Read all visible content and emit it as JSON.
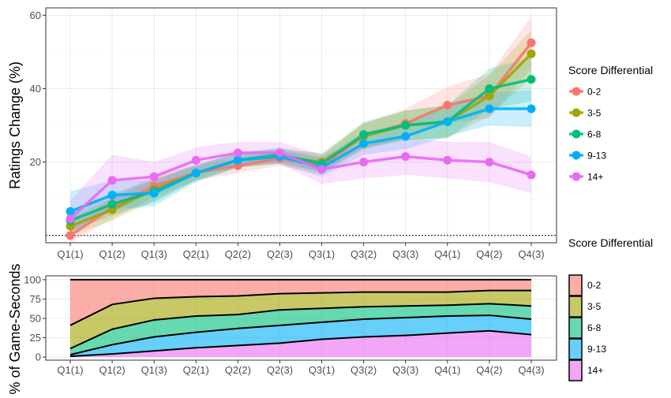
{
  "chart_data": [
    {
      "type": "line",
      "xlabel": "",
      "ylabel": "Ratings Change (%)",
      "categories": [
        "Q1(1)",
        "Q1(2)",
        "Q1(3)",
        "Q2(1)",
        "Q2(2)",
        "Q2(3)",
        "Q3(1)",
        "Q3(2)",
        "Q3(3)",
        "Q4(1)",
        "Q4(2)",
        "Q4(3)"
      ],
      "ylim": [
        -2,
        62
      ],
      "yticks": [
        "20",
        "40",
        "60"
      ],
      "ytick_values": [
        20,
        40,
        60
      ],
      "reference_line": 0,
      "grid": true,
      "legend_title": "Score Differential",
      "legend_position": "right",
      "series": [
        {
          "name": "0-2",
          "color": "#F8766D",
          "values": [
            0.0,
            7.5,
            13.5,
            17.0,
            19.0,
            21.0,
            19.0,
            27.0,
            30.5,
            35.5,
            38.0,
            52.5
          ],
          "band": [
            2.0,
            3.0,
            3.0,
            2.0,
            2.0,
            2.0,
            2.5,
            3.5,
            4.0,
            5.0,
            6.0,
            7.0
          ]
        },
        {
          "name": "3-5",
          "color": "#A3A500",
          "values": [
            2.5,
            7.0,
            12.5,
            17.0,
            20.5,
            21.5,
            20.0,
            27.0,
            30.0,
            31.0,
            38.0,
            49.5
          ],
          "band": [
            2.5,
            3.0,
            3.0,
            2.0,
            2.0,
            2.0,
            2.5,
            3.5,
            4.0,
            4.5,
            5.5,
            6.5
          ]
        },
        {
          "name": "6-8",
          "color": "#00BF7D",
          "values": [
            4.0,
            8.5,
            12.0,
            17.0,
            20.5,
            22.0,
            19.5,
            27.5,
            30.0,
            31.0,
            40.0,
            42.5
          ],
          "band": [
            3.0,
            3.0,
            3.0,
            2.0,
            2.0,
            2.0,
            2.5,
            3.5,
            4.0,
            4.5,
            5.5,
            6.0
          ]
        },
        {
          "name": "9-13",
          "color": "#00B0F6",
          "values": [
            6.5,
            11.0,
            11.5,
            17.0,
            20.5,
            21.5,
            18.5,
            25.0,
            27.0,
            31.0,
            34.5,
            34.5
          ],
          "band": [
            5.5,
            4.0,
            3.5,
            2.5,
            2.0,
            2.0,
            2.5,
            3.0,
            3.5,
            4.0,
            4.5,
            5.0
          ]
        },
        {
          "name": "14+",
          "color": "#E76BF3",
          "values": [
            4.5,
            15.0,
            16.0,
            20.5,
            22.5,
            22.5,
            18.0,
            20.0,
            21.5,
            20.5,
            20.0,
            16.5
          ],
          "band": [
            5.0,
            7.0,
            4.0,
            3.5,
            3.0,
            3.0,
            4.0,
            4.5,
            5.0,
            5.0,
            5.5,
            5.0
          ]
        }
      ]
    },
    {
      "type": "area",
      "stacked": true,
      "xlabel": "",
      "ylabel": "% of Game-Seconds",
      "categories": [
        "Q1(1)",
        "Q1(2)",
        "Q1(3)",
        "Q2(1)",
        "Q2(2)",
        "Q2(3)",
        "Q3(1)",
        "Q3(2)",
        "Q3(3)",
        "Q4(1)",
        "Q4(2)",
        "Q4(3)"
      ],
      "ylim": [
        -4,
        105
      ],
      "yticks": [
        "0",
        "25",
        "50",
        "75",
        "100"
      ],
      "ytick_values": [
        0,
        25,
        50,
        75,
        100
      ],
      "grid": true,
      "legend_title": "Score Differential",
      "legend_position": "right",
      "series": [
        {
          "name": "0-2",
          "color": "#F8766D",
          "values": [
            59,
            32,
            24,
            22,
            21,
            18,
            17,
            16,
            16,
            16,
            14,
            14
          ]
        },
        {
          "name": "3-5",
          "color": "#A3A500",
          "values": [
            30,
            32,
            28,
            25,
            24,
            21,
            20,
            19,
            18,
            17,
            17,
            20
          ]
        },
        {
          "name": "6-8",
          "color": "#00BF7D",
          "values": [
            8,
            20,
            22,
            21,
            18,
            20,
            18,
            16,
            15,
            14,
            15,
            17
          ]
        },
        {
          "name": "9-13",
          "color": "#00B0F6",
          "values": [
            2,
            12,
            18,
            20,
            22,
            23,
            22,
            23,
            23,
            22,
            20,
            20
          ]
        },
        {
          "name": "14+",
          "color": "#E76BF3",
          "values": [
            1,
            4,
            8,
            12,
            15,
            18,
            23,
            26,
            28,
            31,
            34,
            29
          ]
        }
      ]
    }
  ]
}
